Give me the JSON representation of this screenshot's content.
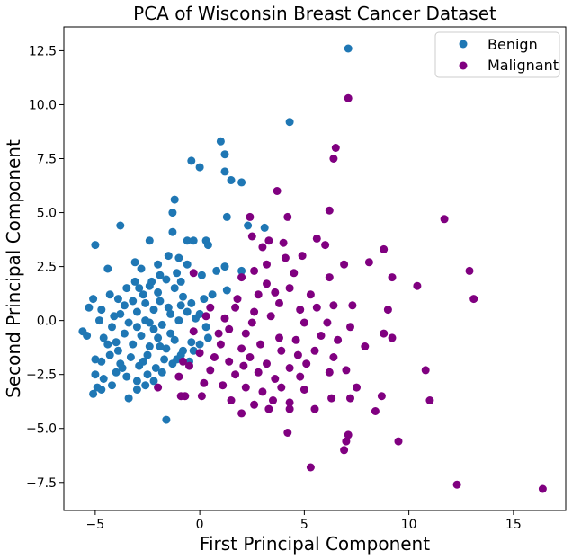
{
  "chart_data": {
    "type": "scatter",
    "title": "PCA of Wisconsin Breast Cancer Dataset",
    "xlabel": "First Principal Component",
    "ylabel": "Second Principal Component",
    "xlim": [
      -6.5,
      17.5
    ],
    "ylim": [
      -8.8,
      13.6
    ],
    "xticks": [
      -5,
      0,
      5,
      10,
      15
    ],
    "yticks": [
      -7.5,
      -5.0,
      -2.5,
      0.0,
      2.5,
      5.0,
      7.5,
      10.0,
      12.5
    ],
    "xtick_labels": [
      "−5",
      "0",
      "5",
      "10",
      "15"
    ],
    "ytick_labels": [
      "−7.5",
      "−5.0",
      "−2.5",
      "0.0",
      "2.5",
      "5.0",
      "7.5",
      "10.0",
      "12.5"
    ],
    "grid": false,
    "legend_position": "top-right",
    "series": [
      {
        "name": "Benign",
        "color": "#1f77b4",
        "points": [
          [
            7.1,
            12.6
          ],
          [
            4.3,
            9.2
          ],
          [
            1.0,
            8.3
          ],
          [
            1.2,
            7.7
          ],
          [
            -0.4,
            7.4
          ],
          [
            0.0,
            7.1
          ],
          [
            1.2,
            6.9
          ],
          [
            1.5,
            6.5
          ],
          [
            2.0,
            6.4
          ],
          [
            -1.2,
            5.6
          ],
          [
            -1.3,
            5.0
          ],
          [
            1.3,
            4.8
          ],
          [
            -3.8,
            4.4
          ],
          [
            -1.3,
            4.1
          ],
          [
            2.3,
            4.4
          ],
          [
            3.1,
            4.3
          ],
          [
            -5.0,
            3.5
          ],
          [
            -2.4,
            3.7
          ],
          [
            -0.6,
            3.7
          ],
          [
            -0.3,
            3.7
          ],
          [
            0.3,
            3.7
          ],
          [
            0.4,
            3.5
          ],
          [
            -4.4,
            2.4
          ],
          [
            -3.1,
            2.7
          ],
          [
            -2.8,
            2.4
          ],
          [
            -2.0,
            2.6
          ],
          [
            -1.5,
            3.0
          ],
          [
            -1.0,
            2.9
          ],
          [
            -0.6,
            2.6
          ],
          [
            0.1,
            2.1
          ],
          [
            0.8,
            2.3
          ],
          [
            1.2,
            2.5
          ],
          [
            2.0,
            2.3
          ],
          [
            -5.1,
            1.0
          ],
          [
            -5.3,
            0.6
          ],
          [
            -4.7,
            0.5
          ],
          [
            -4.3,
            1.2
          ],
          [
            -3.9,
            1.0
          ],
          [
            -3.5,
            1.5
          ],
          [
            -3.1,
            1.8
          ],
          [
            -2.7,
            1.2
          ],
          [
            -2.4,
            1.6
          ],
          [
            -2.0,
            1.3
          ],
          [
            -1.6,
            1.9
          ],
          [
            -1.2,
            1.5
          ],
          [
            -0.8,
            1.1
          ],
          [
            -0.4,
            0.8
          ],
          [
            0.2,
            1.0
          ],
          [
            0.6,
            1.2
          ],
          [
            1.3,
            1.4
          ],
          [
            -4.8,
            0.0
          ],
          [
            -4.2,
            -0.3
          ],
          [
            -3.8,
            0.3
          ],
          [
            -3.4,
            -0.1
          ],
          [
            -3.0,
            0.4
          ],
          [
            -2.6,
            0.0
          ],
          [
            -2.2,
            0.5
          ],
          [
            -1.8,
            -0.2
          ],
          [
            -1.4,
            0.3
          ],
          [
            -1.0,
            0.0
          ],
          [
            -0.6,
            0.4
          ],
          [
            -0.2,
            0.1
          ],
          [
            0.3,
            -0.3
          ],
          [
            -5.6,
            -0.5
          ],
          [
            -5.4,
            -0.7
          ],
          [
            -4.6,
            -0.8
          ],
          [
            -4.0,
            -1.0
          ],
          [
            -3.6,
            -0.6
          ],
          [
            -3.2,
            -1.1
          ],
          [
            -2.8,
            -0.7
          ],
          [
            -2.4,
            -1.2
          ],
          [
            -2.0,
            -0.8
          ],
          [
            -1.6,
            -1.3
          ],
          [
            -1.2,
            -0.9
          ],
          [
            -0.8,
            -1.4
          ],
          [
            -0.4,
            -1.0
          ],
          [
            0.0,
            -1.1
          ],
          [
            -5.0,
            -1.8
          ],
          [
            -4.7,
            -1.9
          ],
          [
            -4.3,
            -1.6
          ],
          [
            -3.8,
            -2.0
          ],
          [
            -3.3,
            -1.7
          ],
          [
            -2.9,
            -2.1
          ],
          [
            -2.5,
            -1.6
          ],
          [
            -2.1,
            -2.2
          ],
          [
            -1.7,
            -1.8
          ],
          [
            -1.3,
            -2.0
          ],
          [
            -0.9,
            -1.6
          ],
          [
            -0.5,
            -1.9
          ],
          [
            -5.0,
            -2.5
          ],
          [
            -4.6,
            -2.7
          ],
          [
            -4.0,
            -2.4
          ],
          [
            -3.5,
            -2.6
          ],
          [
            -3.0,
            -2.8
          ],
          [
            -2.5,
            -2.5
          ],
          [
            -2.2,
            -2.8
          ],
          [
            -1.8,
            -2.4
          ],
          [
            -5.1,
            -3.4
          ],
          [
            -4.9,
            -3.1
          ],
          [
            -4.7,
            -3.2
          ],
          [
            -4.2,
            -3.0
          ],
          [
            -3.0,
            -3.2
          ],
          [
            -2.6,
            -3.0
          ],
          [
            -3.7,
            -2.2
          ],
          [
            -1.6,
            -4.6
          ],
          [
            -3.4,
            -3.6
          ],
          [
            -2.3,
            1.8
          ],
          [
            -1.9,
            2.1
          ],
          [
            -1.1,
            2.2
          ],
          [
            -0.9,
            1.8
          ],
          [
            -3.6,
            0.7
          ],
          [
            -3.0,
            -0.3
          ],
          [
            -2.2,
            -0.4
          ],
          [
            -1.4,
            -0.6
          ],
          [
            -3.2,
            0.9
          ],
          [
            -2.6,
            0.8
          ],
          [
            -1.9,
            0.9
          ],
          [
            -1.5,
            0.6
          ],
          [
            -0.9,
            0.7
          ],
          [
            -4.1,
            0.2
          ],
          [
            -3.9,
            -1.4
          ],
          [
            -2.7,
            -1.9
          ],
          [
            -1.9,
            -1.2
          ],
          [
            -1.1,
            -1.8
          ],
          [
            -0.3,
            -1.4
          ],
          [
            0.4,
            -0.8
          ],
          [
            0.0,
            0.3
          ],
          [
            -2.4,
            -0.1
          ],
          [
            -2.9,
            1.5
          ],
          [
            -4.4,
            -1.1
          ]
        ]
      },
      {
        "name": "Malignant",
        "color": "#800080",
        "points": [
          [
            7.1,
            10.3
          ],
          [
            6.5,
            8.0
          ],
          [
            6.4,
            7.5
          ],
          [
            3.7,
            6.0
          ],
          [
            6.2,
            5.1
          ],
          [
            2.4,
            4.8
          ],
          [
            4.2,
            4.8
          ],
          [
            11.7,
            4.7
          ],
          [
            2.5,
            3.9
          ],
          [
            3.3,
            3.7
          ],
          [
            4.0,
            3.6
          ],
          [
            5.6,
            3.8
          ],
          [
            6.0,
            3.5
          ],
          [
            3.0,
            3.4
          ],
          [
            4.9,
            3.0
          ],
          [
            8.8,
            3.3
          ],
          [
            4.1,
            2.9
          ],
          [
            8.1,
            2.7
          ],
          [
            12.9,
            2.3
          ],
          [
            3.2,
            2.6
          ],
          [
            6.9,
            2.6
          ],
          [
            2.6,
            2.3
          ],
          [
            4.5,
            2.2
          ],
          [
            6.2,
            2.0
          ],
          [
            9.2,
            2.0
          ],
          [
            10.4,
            1.6
          ],
          [
            2.0,
            2.0
          ],
          [
            3.2,
            1.7
          ],
          [
            13.1,
            1.0
          ],
          [
            2.8,
            1.2
          ],
          [
            3.6,
            1.3
          ],
          [
            4.3,
            1.5
          ],
          [
            5.3,
            1.2
          ],
          [
            3.8,
            0.8
          ],
          [
            4.8,
            0.5
          ],
          [
            5.6,
            0.6
          ],
          [
            6.4,
            0.7
          ],
          [
            7.3,
            0.7
          ],
          [
            9.0,
            0.5
          ],
          [
            1.7,
            0.6
          ],
          [
            2.6,
            0.4
          ],
          [
            3.4,
            0.2
          ],
          [
            5.0,
            -0.1
          ],
          [
            6.1,
            -0.1
          ],
          [
            7.2,
            -0.3
          ],
          [
            1.4,
            -0.4
          ],
          [
            2.2,
            -0.6
          ],
          [
            3.8,
            -0.8
          ],
          [
            4.6,
            -0.9
          ],
          [
            5.8,
            -0.7
          ],
          [
            6.6,
            -0.9
          ],
          [
            8.8,
            -0.6
          ],
          [
            9.2,
            -0.8
          ],
          [
            1.0,
            -1.1
          ],
          [
            2.0,
            -1.3
          ],
          [
            2.9,
            -1.1
          ],
          [
            3.9,
            -1.4
          ],
          [
            4.7,
            -1.6
          ],
          [
            5.5,
            -1.4
          ],
          [
            7.9,
            -1.2
          ],
          [
            0.7,
            -1.7
          ],
          [
            1.4,
            -1.9
          ],
          [
            2.4,
            -1.7
          ],
          [
            3.2,
            -2.0
          ],
          [
            4.3,
            -2.2
          ],
          [
            5.1,
            -2.0
          ],
          [
            6.4,
            -1.7
          ],
          [
            0.5,
            -2.3
          ],
          [
            1.7,
            -2.5
          ],
          [
            2.8,
            -2.4
          ],
          [
            3.6,
            -2.7
          ],
          [
            4.8,
            -2.6
          ],
          [
            6.2,
            -2.4
          ],
          [
            7.0,
            -2.3
          ],
          [
            10.8,
            -2.3
          ],
          [
            -1.0,
            -2.6
          ],
          [
            0.2,
            -2.9
          ],
          [
            1.1,
            -3.0
          ],
          [
            2.2,
            -3.1
          ],
          [
            3.0,
            -3.3
          ],
          [
            3.9,
            -3.1
          ],
          [
            5.0,
            -3.2
          ],
          [
            7.5,
            -3.1
          ],
          [
            8.7,
            -3.5
          ],
          [
            -2.0,
            -3.1
          ],
          [
            -0.9,
            -3.5
          ],
          [
            0.1,
            -3.5
          ],
          [
            1.5,
            -3.7
          ],
          [
            2.6,
            -3.9
          ],
          [
            3.5,
            -3.7
          ],
          [
            4.3,
            -3.8
          ],
          [
            6.3,
            -3.6
          ],
          [
            7.2,
            -3.6
          ],
          [
            11.0,
            -3.7
          ],
          [
            2.0,
            -4.3
          ],
          [
            3.3,
            -4.1
          ],
          [
            4.3,
            -4.1
          ],
          [
            5.5,
            -4.1
          ],
          [
            8.4,
            -4.2
          ],
          [
            4.2,
            -5.2
          ],
          [
            7.1,
            -5.3
          ],
          [
            7.0,
            -5.6
          ],
          [
            9.5,
            -5.6
          ],
          [
            6.9,
            -6.0
          ],
          [
            5.3,
            -6.8
          ],
          [
            12.3,
            -7.6
          ],
          [
            16.4,
            -7.8
          ],
          [
            -0.3,
            2.2
          ],
          [
            0.5,
            0.6
          ],
          [
            -0.8,
            -1.9
          ],
          [
            -0.5,
            -2.1
          ],
          [
            0.9,
            -0.6
          ],
          [
            1.8,
            1.0
          ],
          [
            2.5,
            -0.1
          ],
          [
            -0.7,
            -3.5
          ],
          [
            0.0,
            -1.5
          ],
          [
            -0.3,
            -0.5
          ],
          [
            0.3,
            0.2
          ],
          [
            1.2,
            0.1
          ],
          [
            2.1,
            -2.1
          ]
        ]
      }
    ]
  }
}
